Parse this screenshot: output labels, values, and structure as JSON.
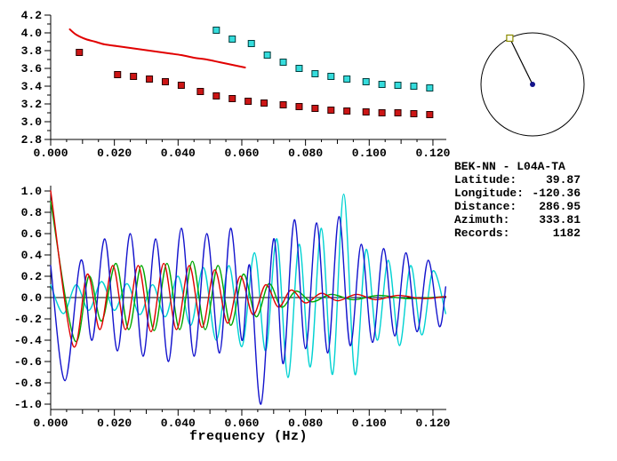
{
  "station_info": {
    "title": "BEK-NN - L04A-TA",
    "rows": [
      {
        "label": "Latitude:",
        "value": "39.87"
      },
      {
        "label": "Longitude:",
        "value": "-120.36"
      },
      {
        "label": "Distance:",
        "value": "286.95"
      },
      {
        "label": "Azimuth:",
        "value": "333.81"
      },
      {
        "label": "Records:",
        "value": "1182"
      }
    ]
  },
  "azimuth_dial": {
    "azimuth_deg": 333.81,
    "circle_color": "#000000",
    "marker_fill": "#fffff0",
    "marker_edge": "#8a8a00",
    "center_dot_color": "#14148c"
  },
  "chart_data": [
    {
      "id": "dispersion",
      "type": "scatter",
      "title": "",
      "xlabel": "",
      "ylabel": "",
      "xlim": [
        0,
        0.1242
      ],
      "ylim": [
        2.8,
        4.2
      ],
      "grid": false,
      "xticks": {
        "values": [
          0,
          0.02,
          0.04,
          0.06,
          0.08,
          0.1,
          0.12
        ],
        "labels": [
          "0.000",
          "0.020",
          "0.040",
          "0.060",
          "0.080",
          "0.100",
          "0.120"
        ]
      },
      "yticks": {
        "values": [
          2.8,
          3.0,
          3.2,
          3.4,
          3.6,
          3.8,
          4.0,
          4.2
        ],
        "labels": [
          "2.8",
          "3.0",
          "3.2",
          "3.4",
          "3.6",
          "3.8",
          "4.0",
          "4.2"
        ]
      },
      "series": [
        {
          "name": "reference-dispersion-curve",
          "kind": "line",
          "smooth": true,
          "color": "#e10000",
          "width": 2,
          "x": [
            0.006,
            0.008,
            0.011,
            0.014,
            0.017,
            0.021,
            0.025,
            0.029,
            0.033,
            0.037,
            0.041,
            0.045,
            0.049,
            0.053,
            0.057,
            0.061
          ],
          "y": [
            4.04,
            3.98,
            3.93,
            3.9,
            3.87,
            3.85,
            3.83,
            3.81,
            3.79,
            3.77,
            3.75,
            3.72,
            3.7,
            3.67,
            3.64,
            3.61
          ]
        },
        {
          "name": "group-velocity-picks",
          "kind": "square",
          "color": "#cc1515",
          "edge": "#2a0000",
          "x": [
            0.009,
            0.021,
            0.026,
            0.031,
            0.036,
            0.041,
            0.047,
            0.052,
            0.057,
            0.062,
            0.067,
            0.073,
            0.078,
            0.083,
            0.088,
            0.093,
            0.099,
            0.104,
            0.109,
            0.114,
            0.119
          ],
          "y": [
            3.78,
            3.53,
            3.51,
            3.48,
            3.45,
            3.41,
            3.34,
            3.29,
            3.26,
            3.23,
            3.21,
            3.19,
            3.17,
            3.15,
            3.13,
            3.12,
            3.11,
            3.1,
            3.1,
            3.09,
            3.08
          ]
        },
        {
          "name": "phase-velocity-picks",
          "kind": "square",
          "color": "#35dcdc",
          "edge": "#003c3c",
          "x": [
            0.052,
            0.057,
            0.063,
            0.068,
            0.073,
            0.078,
            0.083,
            0.088,
            0.093,
            0.099,
            0.104,
            0.109,
            0.114,
            0.119
          ],
          "y": [
            4.03,
            3.93,
            3.88,
            3.75,
            3.67,
            3.6,
            3.54,
            3.51,
            3.48,
            3.45,
            3.42,
            3.41,
            3.4,
            3.38
          ]
        }
      ]
    },
    {
      "id": "waveforms",
      "type": "line",
      "title": "",
      "xlabel": "frequency (Hz)",
      "ylabel": "",
      "xlim": [
        0,
        0.1242
      ],
      "ylim": [
        -1.05,
        1.05
      ],
      "zero_line": true,
      "grid": false,
      "xticks": {
        "values": [
          0,
          0.02,
          0.04,
          0.06,
          0.08,
          0.1,
          0.12
        ],
        "labels": [
          "0.000",
          "0.020",
          "0.040",
          "0.060",
          "0.080",
          "0.100",
          "0.120"
        ]
      },
      "yticks": {
        "values": [
          -1.0,
          -0.8,
          -0.6,
          -0.4,
          -0.2,
          0.0,
          0.2,
          0.4,
          0.6,
          0.8,
          1.0
        ],
        "labels": [
          "-1.0",
          "-0.8",
          "-0.6",
          "-0.4",
          "-0.2",
          "0.0",
          "0.2",
          "0.4",
          "0.6",
          "0.8",
          "1.0"
        ]
      },
      "series": [
        {
          "name": "trace-cyan",
          "kind": "line",
          "smooth": true,
          "color": "#00d2d2",
          "width": 1.4,
          "points": [
            [
              0,
              0.12
            ],
            [
              0.004,
              -0.15
            ],
            [
              0.008,
              0.12
            ],
            [
              0.012,
              -0.12
            ],
            [
              0.016,
              0.15
            ],
            [
              0.02,
              -0.12
            ],
            [
              0.024,
              0.13
            ],
            [
              0.028,
              -0.16
            ],
            [
              0.032,
              0.12
            ],
            [
              0.036,
              -0.18
            ],
            [
              0.04,
              0.2
            ],
            [
              0.044,
              -0.26
            ],
            [
              0.048,
              0.28
            ],
            [
              0.052,
              -0.4
            ],
            [
              0.056,
              0.3
            ],
            [
              0.06,
              -0.46
            ],
            [
              0.064,
              0.42
            ],
            [
              0.0675,
              -0.5
            ],
            [
              0.071,
              0.55
            ],
            [
              0.0745,
              -0.75
            ],
            [
              0.078,
              0.5
            ],
            [
              0.0815,
              -0.65
            ],
            [
              0.085,
              0.65
            ],
            [
              0.0885,
              -0.72
            ],
            [
              0.092,
              0.97
            ],
            [
              0.0955,
              -0.72
            ],
            [
              0.099,
              0.45
            ],
            [
              0.1025,
              -0.4
            ],
            [
              0.106,
              0.35
            ],
            [
              0.1095,
              -0.45
            ],
            [
              0.113,
              0.3
            ],
            [
              0.1165,
              -0.35
            ],
            [
              0.12,
              0.25
            ],
            [
              0.124,
              -0.15
            ]
          ]
        },
        {
          "name": "trace-green",
          "kind": "line",
          "smooth": true,
          "color": "#00a800",
          "width": 1.4,
          "points": [
            [
              0,
              0.9
            ],
            [
              0.0075,
              -0.4
            ],
            [
              0.012,
              0.2
            ],
            [
              0.016,
              -0.22
            ],
            [
              0.0205,
              0.32
            ],
            [
              0.0245,
              -0.3
            ],
            [
              0.0285,
              0.3
            ],
            [
              0.0325,
              -0.31
            ],
            [
              0.0365,
              0.32
            ],
            [
              0.0405,
              -0.3
            ],
            [
              0.0445,
              0.34
            ],
            [
              0.0485,
              -0.3
            ],
            [
              0.0525,
              0.3
            ],
            [
              0.0565,
              -0.26
            ],
            [
              0.0605,
              0.22
            ],
            [
              0.0645,
              -0.18
            ],
            [
              0.0685,
              0.13
            ],
            [
              0.0725,
              -0.09
            ],
            [
              0.077,
              0.06
            ],
            [
              0.082,
              -0.04
            ],
            [
              0.088,
              0.03
            ],
            [
              0.095,
              -0.02
            ],
            [
              0.103,
              0.02
            ],
            [
              0.112,
              -0.01
            ],
            [
              0.124,
              0.01
            ]
          ]
        },
        {
          "name": "trace-red",
          "kind": "line",
          "smooth": true,
          "color": "#e10000",
          "width": 1.4,
          "points": [
            [
              0,
              1.0
            ],
            [
              0.007,
              -0.45
            ],
            [
              0.0115,
              0.22
            ],
            [
              0.0155,
              -0.3
            ],
            [
              0.0195,
              0.3
            ],
            [
              0.0235,
              -0.3
            ],
            [
              0.0275,
              0.3
            ],
            [
              0.0315,
              -0.32
            ],
            [
              0.0355,
              0.32
            ],
            [
              0.0395,
              -0.3
            ],
            [
              0.0435,
              0.3
            ],
            [
              0.0475,
              -0.28
            ],
            [
              0.0515,
              0.26
            ],
            [
              0.0555,
              -0.24
            ],
            [
              0.0595,
              0.2
            ],
            [
              0.0635,
              -0.16
            ],
            [
              0.0675,
              0.12
            ],
            [
              0.0715,
              -0.09
            ],
            [
              0.0755,
              0.07
            ],
            [
              0.08,
              -0.05
            ],
            [
              0.085,
              0.04
            ],
            [
              0.09,
              -0.03
            ],
            [
              0.096,
              0.03
            ],
            [
              0.102,
              -0.02
            ],
            [
              0.109,
              0.02
            ],
            [
              0.117,
              -0.01
            ],
            [
              0.124,
              0.01
            ]
          ]
        },
        {
          "name": "trace-blue",
          "kind": "line",
          "smooth": true,
          "color": "#1414cd",
          "width": 1.4,
          "points": [
            [
              0,
              0.3
            ],
            [
              0.0045,
              -0.78
            ],
            [
              0.0095,
              0.35
            ],
            [
              0.013,
              -0.4
            ],
            [
              0.017,
              0.55
            ],
            [
              0.021,
              -0.5
            ],
            [
              0.025,
              0.6
            ],
            [
              0.029,
              -0.55
            ],
            [
              0.033,
              0.55
            ],
            [
              0.037,
              -0.6
            ],
            [
              0.041,
              0.65
            ],
            [
              0.045,
              -0.55
            ],
            [
              0.049,
              0.6
            ],
            [
              0.053,
              -0.52
            ],
            [
              0.0565,
              0.65
            ],
            [
              0.06,
              -0.4
            ],
            [
              0.0625,
              0.3
            ],
            [
              0.066,
              -1.0
            ],
            [
              0.07,
              0.55
            ],
            [
              0.073,
              -0.62
            ],
            [
              0.0765,
              0.73
            ],
            [
              0.08,
              -0.48
            ],
            [
              0.0835,
              0.7
            ],
            [
              0.087,
              -0.52
            ],
            [
              0.0905,
              0.76
            ],
            [
              0.094,
              -0.45
            ],
            [
              0.0975,
              0.5
            ],
            [
              0.101,
              -0.42
            ],
            [
              0.1045,
              0.46
            ],
            [
              0.108,
              -0.36
            ],
            [
              0.1115,
              0.42
            ],
            [
              0.115,
              -0.32
            ],
            [
              0.1185,
              0.35
            ],
            [
              0.122,
              -0.27
            ],
            [
              0.124,
              0.1
            ]
          ]
        }
      ]
    }
  ]
}
